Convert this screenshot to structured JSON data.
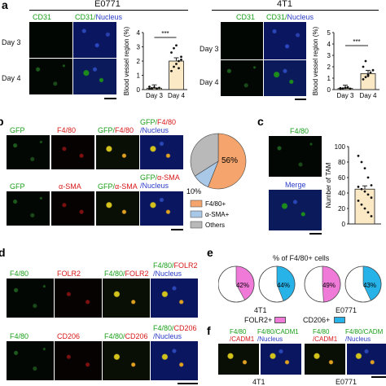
{
  "panel_letters": {
    "a": "a",
    "b": "b",
    "c": "c",
    "d": "d",
    "e": "e",
    "f": "f"
  },
  "panel_a": {
    "left_title": "E0771",
    "right_title": "4T1",
    "ch_cd31": "CD31",
    "ch_merge_prefix": "CD31/",
    "ch_merge_suffix": "Nucleus",
    "day3": "Day 3",
    "day4": "Day 4",
    "sig": "***"
  },
  "panel_b": {
    "row1": [
      "GFP",
      "F4/80",
      "GFP/F4/80",
      "GFP/F4/80/Nucleus"
    ],
    "row2": [
      "GFP",
      "α-SMA",
      "GFP/α-SMA",
      "GFP/α-SMA/Nucleus"
    ],
    "row1_merge_a": "GFP/",
    "row1_merge_b": "F4/80",
    "row1_merge4_a": "GFP/",
    "row1_merge4_b": "F4/80",
    "row1_merge4_c": "/Nucleus",
    "row2_merge_a": "GFP/",
    "row2_merge_b": "α-SMA",
    "row2_merge4_a": "GFP/",
    "row2_merge4_b": "α-SMA",
    "row2_merge4_c": "/Nucleus"
  },
  "panel_c": {
    "top_label": "F4/80",
    "bottom_label": "Merge"
  },
  "panel_d": {
    "row1_labels": [
      "F4/80",
      "FOLR2"
    ],
    "row1_merge_a": "F4/80/",
    "row1_merge_b": "FOLR2",
    "row1_merge4_a": "F4/80/",
    "row1_merge4_b": "FOLR2",
    "row1_merge4_c": "/Nucleus",
    "row2_labels": [
      "F4/80",
      "CD206"
    ],
    "row2_merge_a": "F4/80/",
    "row2_merge_b": "CD206",
    "row2_merge4_a": "F4/80/",
    "row2_merge4_b": "CD206",
    "row2_merge4_c": "/Nucleus"
  },
  "panel_e": {
    "title": "% of F4/80+ cells",
    "group1": "4T1",
    "group2": "E0771",
    "legend_folr2": "FOLR2+",
    "legend_cd206": "CD206+"
  },
  "panel_f": {
    "labels": [
      {
        "a": "F4/80",
        "b": "/CADM1"
      },
      {
        "a": "F4/80/CADM1",
        "b": "/Nucleus"
      },
      {
        "a": "F4/80",
        "b": "/CADM1"
      },
      {
        "a": "F4/80/CADM",
        "b": "/Nucleus"
      }
    ],
    "group1": "4T1",
    "group2": "E0771"
  },
  "colors": {
    "green_label": "#1a9e1a",
    "red_label": "#d81818",
    "blue_label": "#2a3cc8",
    "bar_fill": "#fbe8c5",
    "pie_f480": "#f4a46c",
    "pie_asma": "#a9c7e6",
    "pie_others": "#b9b9b9",
    "pie_folr2": "#f07ad8",
    "pie_cd206": "#27b2e8"
  },
  "chart_data": [
    {
      "type": "bar",
      "panel": "a-left",
      "categories": [
        "Day 3",
        "Day 4"
      ],
      "values": [
        0.1,
        2.0
      ],
      "ylabel": "Blood vessel region (%)",
      "ylim": [
        0,
        4
      ],
      "yticks": [
        0,
        1,
        2,
        3,
        4
      ],
      "points": {
        "Day 3": [
          0.05,
          0.1,
          0.15,
          0.08,
          0.12,
          0.2,
          0.05
        ],
        "Day 4": [
          1.3,
          1.6,
          1.8,
          2.0,
          2.3,
          2.6,
          2.9,
          3.1,
          1.5,
          2.1
        ]
      },
      "significance": "***"
    },
    {
      "type": "bar",
      "panel": "a-right",
      "categories": [
        "Day 3",
        "Day 4"
      ],
      "values": [
        0.1,
        1.4
      ],
      "ylabel": "Blood vessel region (%)",
      "ylim": [
        0,
        5
      ],
      "yticks": [
        0,
        1,
        2,
        3,
        4,
        5
      ],
      "points": {
        "Day 3": [
          0.05,
          0.1,
          0.15,
          0.2,
          0.08,
          0.12
        ],
        "Day 4": [
          0.9,
          1.1,
          1.3,
          1.5,
          1.7,
          2.0,
          2.5,
          1.2
        ]
      },
      "significance": "***"
    },
    {
      "type": "pie",
      "panel": "b",
      "labels": [
        "F4/80+",
        "α-SMA+",
        "Others"
      ],
      "values": [
        56,
        10,
        34
      ],
      "slice_labels": [
        "56%",
        "10%",
        ""
      ],
      "colors": [
        "#f4a46c",
        "#a9c7e6",
        "#b9b9b9"
      ]
    },
    {
      "type": "bar",
      "panel": "c",
      "categories": [
        ""
      ],
      "values": [
        45
      ],
      "ylabel": "Number of TAM",
      "ylim": [
        0,
        100
      ],
      "yticks": [
        0,
        20,
        40,
        60,
        80,
        100
      ],
      "points": [
        88,
        80,
        72,
        60,
        50,
        48,
        45,
        42,
        38,
        34,
        30,
        25,
        20,
        15,
        10
      ]
    },
    {
      "type": "pie",
      "panel": "e",
      "pies": [
        {
          "group": "4T1",
          "marker": "FOLR2+",
          "percent": 42,
          "label": "42%",
          "color": "#f07ad8"
        },
        {
          "group": "4T1",
          "marker": "CD206+",
          "percent": 44,
          "label": "44%",
          "color": "#27b2e8"
        },
        {
          "group": "E0771",
          "marker": "FOLR2+",
          "percent": 49,
          "label": "49%",
          "color": "#f07ad8"
        },
        {
          "group": "E0771",
          "marker": "CD206+",
          "percent": 43,
          "label": "43%",
          "color": "#27b2e8"
        }
      ]
    }
  ]
}
